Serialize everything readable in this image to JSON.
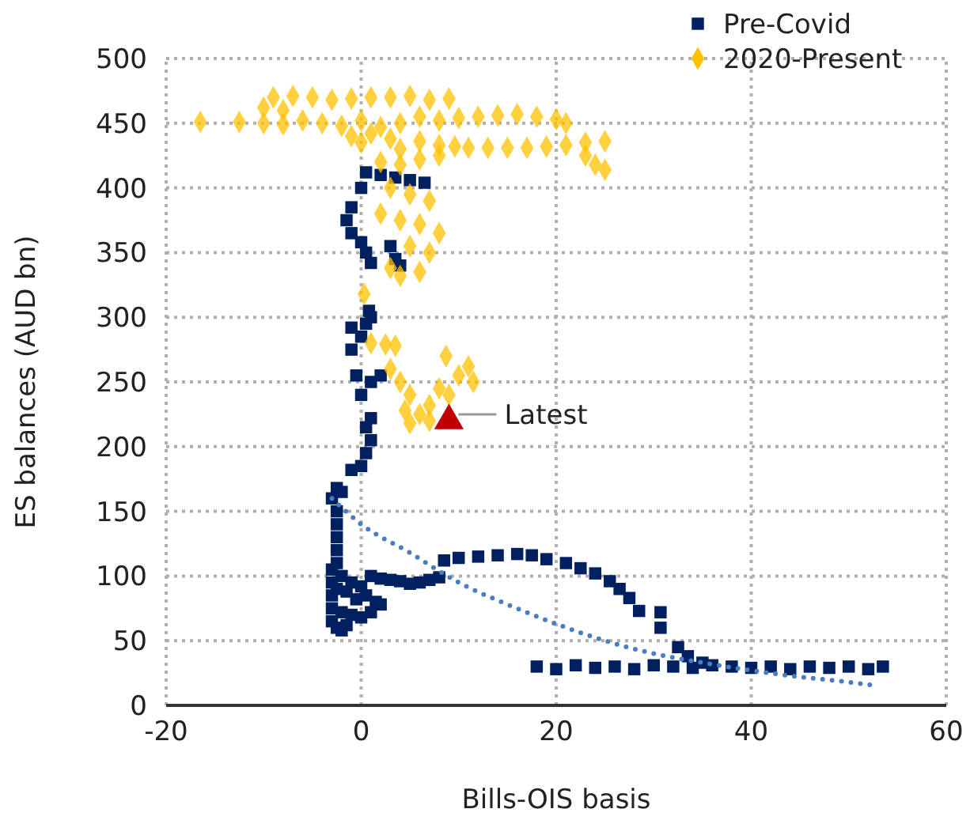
{
  "chart_data": {
    "type": "scatter",
    "xlabel": "Bills-OIS basis",
    "ylabel": "ES balances (AUD bn)",
    "xlim": [
      -20,
      60
    ],
    "xticks": [
      -20,
      0,
      20,
      40,
      60
    ],
    "ylim": [
      0,
      500
    ],
    "yticks": [
      0,
      50,
      100,
      150,
      200,
      250,
      300,
      350,
      400,
      450,
      500
    ],
    "grid": true,
    "legend": "top right",
    "series": [
      {
        "name": "Pre-Covid",
        "color": "#002060",
        "marker": "square",
        "x": [
          -3,
          -2.5,
          -2,
          -1.5,
          -3,
          -2,
          -1,
          0,
          1,
          2,
          -3,
          -2.5,
          -1.5,
          -0.5,
          0.5,
          1.5,
          -3,
          -2,
          -1,
          0,
          -3,
          -2.5,
          -2.5,
          -2.5,
          -2.5,
          -2.5,
          -3,
          -2,
          -2.5,
          -1,
          0,
          0.5,
          1,
          0.5,
          1,
          0,
          1,
          2,
          -0.5,
          -1,
          0,
          0.5,
          1,
          -1,
          1,
          2,
          3,
          4,
          5,
          6,
          7,
          8,
          8.5,
          10,
          12,
          14,
          16,
          17.5,
          19,
          21,
          22.5,
          24,
          25.5,
          26.5,
          27.5,
          28.5,
          30.7,
          30.7,
          18,
          20,
          22,
          24,
          26,
          28,
          30,
          32,
          34,
          36,
          38,
          40,
          42,
          44,
          46,
          48,
          50,
          52,
          53.5,
          32.5,
          33.5,
          35,
          0.5,
          2,
          3.5,
          5,
          6.5,
          0,
          -1,
          -1.5,
          -1,
          0,
          0.5,
          1,
          3,
          3.5,
          4,
          0.8
        ],
        "values": [
          65,
          60,
          58,
          62,
          75,
          72,
          70,
          68,
          72,
          78,
          85,
          90,
          88,
          82,
          85,
          80,
          95,
          100,
          95,
          92,
          105,
          110,
          120,
          130,
          140,
          150,
          160,
          165,
          168,
          182,
          185,
          195,
          205,
          215,
          222,
          240,
          250,
          255,
          255,
          275,
          285,
          295,
          300,
          292,
          100,
          98,
          97,
          96,
          94,
          95,
          97,
          99,
          112,
          114,
          115,
          116,
          117,
          116,
          113,
          110,
          106,
          102,
          96,
          90,
          83,
          73,
          72,
          60,
          30,
          28,
          31,
          29,
          30,
          28,
          31,
          30,
          29,
          31,
          30,
          29,
          30,
          28,
          30,
          29,
          30,
          28,
          30,
          45,
          38,
          33,
          412,
          410,
          408,
          406,
          404,
          400,
          385,
          375,
          365,
          358,
          350,
          342,
          355,
          345,
          340,
          305
        ]
      },
      {
        "name": "2020-Present",
        "color": "#ffc000",
        "marker": "diamond",
        "x": [
          -16.5,
          -12.5,
          -9,
          -7,
          -5,
          -3,
          -1,
          1,
          3,
          5,
          7,
          9,
          -10,
          -8,
          -10,
          -8,
          -6,
          -4,
          -2,
          0,
          2,
          4,
          6,
          8,
          10,
          12,
          14,
          16,
          18,
          20,
          21,
          -1,
          0,
          1,
          3,
          4,
          6,
          8,
          9.6,
          11,
          13,
          15,
          17,
          19,
          21,
          23,
          25,
          23,
          24,
          25,
          2,
          4,
          6,
          8,
          3,
          5,
          7,
          2,
          4,
          6,
          8,
          5,
          7,
          3,
          4,
          6,
          0.3,
          1,
          2.5,
          3.5,
          3,
          4,
          5,
          4.5,
          6,
          7,
          8,
          9,
          10,
          11,
          11.5,
          8.7,
          5,
          7
        ],
        "values": [
          451,
          451,
          470,
          471,
          470,
          468,
          469,
          470,
          470,
          471,
          468,
          469,
          462,
          460,
          450,
          449,
          452,
          450,
          448,
          452,
          447,
          450,
          455,
          452,
          454,
          455,
          456,
          457,
          455,
          453,
          450,
          440,
          435,
          442,
          438,
          430,
          436,
          433,
          432,
          431,
          431,
          431,
          431,
          432,
          433,
          435,
          436,
          425,
          418,
          414,
          420,
          418,
          422,
          425,
          400,
          395,
          390,
          380,
          375,
          372,
          365,
          355,
          350,
          338,
          332,
          335,
          318,
          280,
          279,
          278,
          260,
          250,
          240,
          228,
          225,
          232,
          245,
          240,
          255,
          262,
          250,
          270,
          218,
          220
        ]
      },
      {
        "type": "line",
        "color": "#4a7ebf",
        "line_style": "dotted",
        "marker": "none",
        "x": [
          -3,
          0,
          5,
          10,
          15,
          20,
          25,
          30,
          35,
          40,
          45,
          50,
          53
        ],
        "values": [
          160,
          140,
          118,
          95,
          78,
          63,
          50,
          40,
          33,
          27,
          22,
          18,
          15
        ]
      },
      {
        "color": "#c00000",
        "marker": "triangle",
        "x": [
          9
        ],
        "values": [
          220
        ]
      }
    ],
    "annotations": [
      {
        "text": "Latest",
        "x": 9,
        "y": 220
      }
    ]
  }
}
